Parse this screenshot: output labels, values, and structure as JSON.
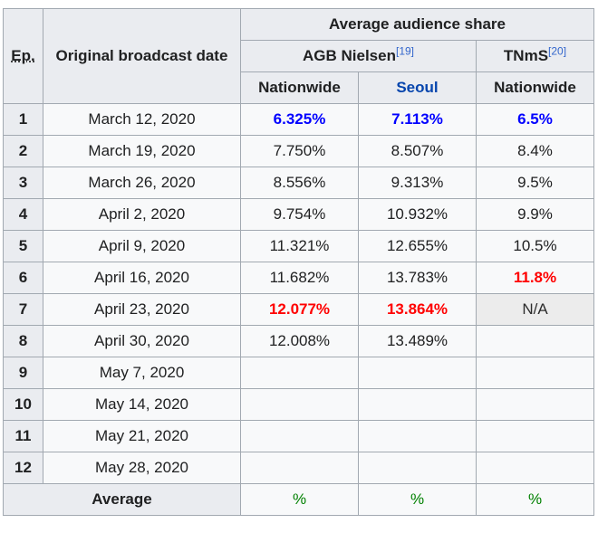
{
  "header": {
    "group_title": "Average audience share",
    "ep_label": "Ep.",
    "date_label": "Original broadcast date",
    "agb_label": "AGB Nielsen",
    "agb_ref": "[19]",
    "tnms_label": "TNmS",
    "tnms_ref": "[20]",
    "sub_nationwide_1": "Nationwide",
    "sub_seoul": "Seoul",
    "sub_nationwide_2": "Nationwide"
  },
  "rows": [
    {
      "ep": "1",
      "date": "March 12, 2020",
      "agb_nat": "6.325%",
      "agb_seoul": "7.113%",
      "tnms_nat": "6.5%"
    },
    {
      "ep": "2",
      "date": "March 19, 2020",
      "agb_nat": "7.750%",
      "agb_seoul": "8.507%",
      "tnms_nat": "8.4%"
    },
    {
      "ep": "3",
      "date": "March 26, 2020",
      "agb_nat": "8.556%",
      "agb_seoul": "9.313%",
      "tnms_nat": "9.5%"
    },
    {
      "ep": "4",
      "date": "April 2, 2020",
      "agb_nat": "9.754%",
      "agb_seoul": "10.932%",
      "tnms_nat": "9.9%"
    },
    {
      "ep": "5",
      "date": "April 9, 2020",
      "agb_nat": "11.321%",
      "agb_seoul": "12.655%",
      "tnms_nat": "10.5%"
    },
    {
      "ep": "6",
      "date": "April 16, 2020",
      "agb_nat": "11.682%",
      "agb_seoul": "13.783%",
      "tnms_nat": "11.8%"
    },
    {
      "ep": "7",
      "date": "April 23, 2020",
      "agb_nat": "12.077%",
      "agb_seoul": "13.864%",
      "tnms_nat": "N/A"
    },
    {
      "ep": "8",
      "date": "April 30, 2020",
      "agb_nat": "12.008%",
      "agb_seoul": "13.489%",
      "tnms_nat": ""
    },
    {
      "ep": "9",
      "date": "May 7, 2020",
      "agb_nat": "",
      "agb_seoul": "",
      "tnms_nat": ""
    },
    {
      "ep": "10",
      "date": "May 14, 2020",
      "agb_nat": "",
      "agb_seoul": "",
      "tnms_nat": ""
    },
    {
      "ep": "11",
      "date": "May 21, 2020",
      "agb_nat": "",
      "agb_seoul": "",
      "tnms_nat": ""
    },
    {
      "ep": "12",
      "date": "May 28, 2020",
      "agb_nat": "",
      "agb_seoul": "",
      "tnms_nat": ""
    }
  ],
  "average": {
    "label": "Average",
    "agb_nat": "%",
    "agb_seoul": "%",
    "tnms_nat": "%"
  },
  "colors": {
    "min_highlight": "#0000ff",
    "max_highlight": "#ff0000",
    "average_value": "#008000",
    "header_bg": "#eaecf0",
    "cell_bg": "#f8f9fa",
    "border": "#a2a9b1"
  }
}
